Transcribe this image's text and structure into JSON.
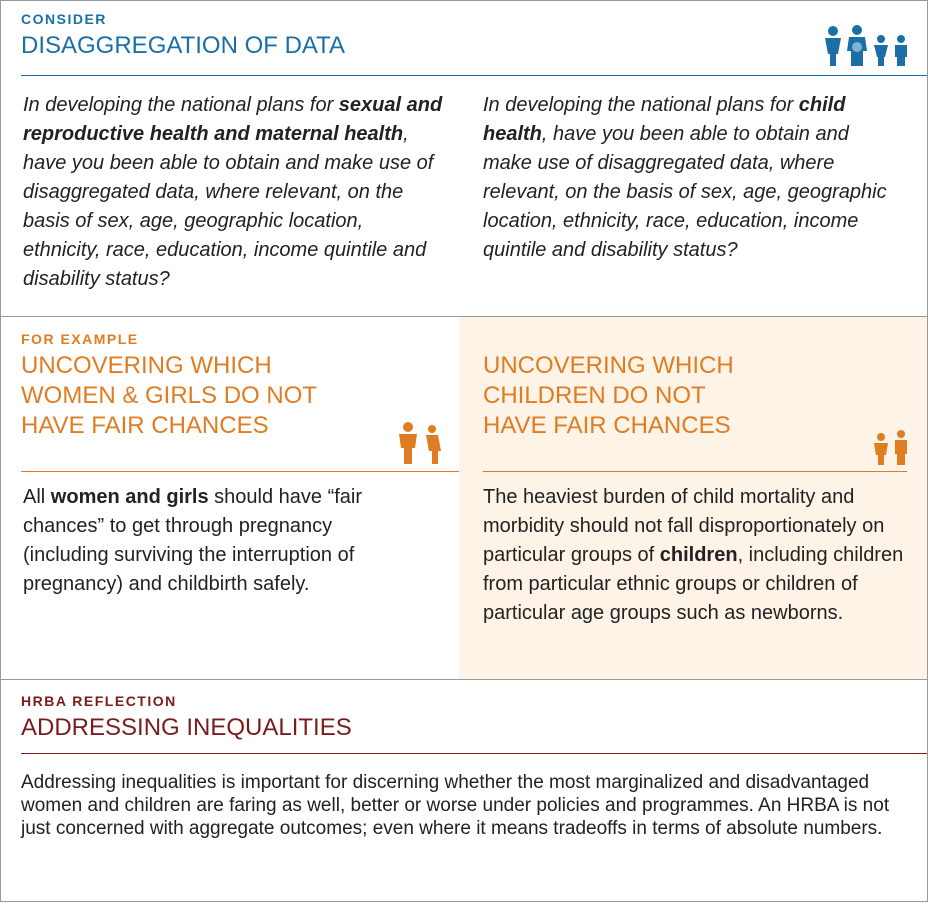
{
  "consider": {
    "label": "CONSIDER",
    "title": "DISAGGREGATION OF DATA",
    "questions": [
      {
        "before": "In developing the national plans for ",
        "emphasis": "sexual and reproductive health and maternal health",
        "after": ", have you been able to obtain and make use of disaggregated data, where relevant, on the basis of sex, age, geographic location, ethnicity, race, education, income quintile and disability status?"
      },
      {
        "before": "In developing the national plans for ",
        "emphasis": "child health",
        "after": ", have you been able to obtain and make use of disaggregated data, where relevant, on the basis of sex, age, geographic location, ethnicity, race, education, income quintile and disability status?"
      }
    ]
  },
  "example": {
    "label": "FOR EXAMPLE",
    "columns": [
      {
        "title_lines": [
          "UNCOVERING WHICH",
          "WOMEN & GIRLS DO NOT",
          "HAVE FAIR CHANCES"
        ],
        "before": "All ",
        "emphasis": "women and girls",
        "after": " should have “fair chances” to get through pregnancy (including surviving the interruption of pregnancy) and childbirth safely."
      },
      {
        "title_lines": [
          "UNCOVERING WHICH",
          "CHILDREN DO NOT",
          "HAVE FAIR CHANCES"
        ],
        "before": "The heaviest burden of child mortality and morbidity should not fall disproportionately on particular groups of ",
        "emphasis": "children",
        "after": ", including children from particular ethnic groups or children of particular age groups such as newborns."
      }
    ]
  },
  "reflection": {
    "label": "HRBA REFLECTION",
    "title": "ADDRESSING INEQUALITIES",
    "text": "Addressing inequalities is important for discerning whether the most marginalized and disadvantaged women and children are faring as well, better or worse under policies and programmes. An HRBA is not just concerned with aggregate outcomes; even where it means tradeoffs in terms of absolute numbers."
  }
}
